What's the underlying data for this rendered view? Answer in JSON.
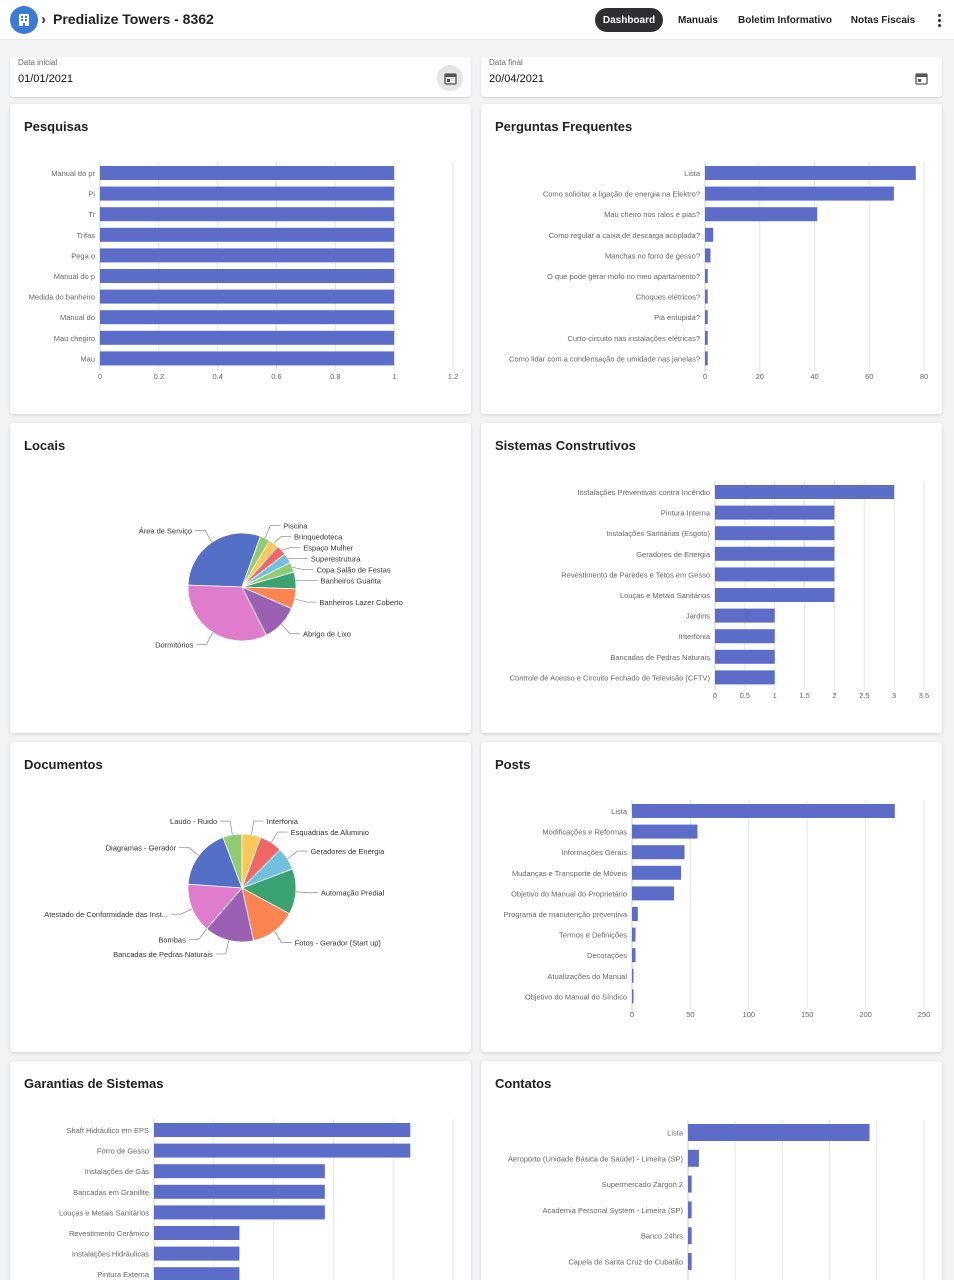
{
  "header": {
    "title": "Predialize Towers - 8362",
    "nav": [
      {
        "label": "Dashboard",
        "active": true
      },
      {
        "label": "Manuais",
        "active": false
      },
      {
        "label": "Boletim Informativo",
        "active": false
      },
      {
        "label": "Notas Fiscais",
        "active": false
      }
    ]
  },
  "filters": {
    "start": {
      "label": "Data inicial",
      "value": "01/01/2021"
    },
    "end": {
      "label": "Data final",
      "value": "20/04/2021"
    }
  },
  "colors": {
    "bar": "#5b6dc8",
    "grid": "#e6e6e6"
  },
  "cards": [
    {
      "title": "Pesquisas"
    },
    {
      "title": "Perguntas Frequentes"
    },
    {
      "title": "Locais"
    },
    {
      "title": "Sistemas Construtivos"
    },
    {
      "title": "Documentos"
    },
    {
      "title": "Posts"
    },
    {
      "title": "Garantias de Sistemas"
    },
    {
      "title": "Contatos"
    }
  ],
  "chart_data": [
    {
      "type": "bar",
      "orientation": "horizontal",
      "categories": [
        "Manual do pr",
        "Pi",
        "Tr",
        "Trifas",
        "Pega o",
        "Manual do p",
        "Medida do banheiro",
        "Manual do",
        "Mau chegiro",
        "Mau"
      ],
      "values": [
        1,
        1,
        1,
        1,
        1,
        1,
        1,
        1,
        1,
        1
      ],
      "ticks": [
        "0",
        "0.2",
        "0.4",
        "0.6",
        "0.8",
        "1",
        "1.2"
      ],
      "xlim": [
        0,
        1.2
      ]
    },
    {
      "type": "bar",
      "orientation": "horizontal",
      "categories": [
        "Lista",
        "Como solicitar a ligação de energia na Elektro?",
        "Mau cheiro nos ralos e pias?",
        "Como regular a caixa de descarga acoplada?",
        "Manchas no forro de gesso?",
        "O que pode gerar mofo no meu apartamento?",
        "Choques elétricos?",
        "Pia entupida?",
        "Curto-circuito nas instalações elétricas?",
        "Como lidar com a condensação de umidade nas janelas?"
      ],
      "values": [
        77,
        69,
        41,
        3,
        2,
        1,
        1,
        1,
        1,
        1
      ],
      "ticks": [
        "0",
        "20",
        "40",
        "60",
        "80"
      ],
      "xlim": [
        0,
        80
      ]
    },
    {
      "type": "pie",
      "slices": [
        {
          "label": "Área de Serviço",
          "value": 30,
          "color": "#5470c6"
        },
        {
          "label": "Piscina",
          "value": 3,
          "color": "#91cc75"
        },
        {
          "label": "Brinquedoteca",
          "value": 3,
          "color": "#fac858"
        },
        {
          "label": "Espaço Mulher",
          "value": 3,
          "color": "#ee6666"
        },
        {
          "label": "Superestrutura",
          "value": 3,
          "color": "#73c0de"
        },
        {
          "label": "Copa Salão de Festas",
          "value": 3,
          "color": "#91cc75"
        },
        {
          "label": "Banheiros Guarita",
          "value": 5,
          "color": "#3ba272"
        },
        {
          "label": "Banheiros Lazer Coberto",
          "value": 6,
          "color": "#fc8452"
        },
        {
          "label": "Abrigo de Lixo",
          "value": 11,
          "color": "#9a60b4"
        },
        {
          "label": "Dormitórios",
          "value": 33,
          "color": "#e07ccc"
        }
      ]
    },
    {
      "type": "bar",
      "orientation": "horizontal",
      "categories": [
        "Instalações Preventivas contra Incêndio",
        "Pintura Interna",
        "Instalações Sanitárias (Esgoto)",
        "Geradores de Energia",
        "Revestimento de Paredes e Tetos em Gesso",
        "Louças e Metais Sanitários",
        "Jardins",
        "Interfonia",
        "Bancadas de Pedras Naturais",
        "Controle de Acesso e Circuito Fechado de Televisão (CFTV)"
      ],
      "values": [
        3,
        2,
        2,
        2,
        2,
        2,
        1,
        1,
        1,
        1
      ],
      "ticks": [
        "0",
        "0.5",
        "1",
        "1.5",
        "2",
        "2.5",
        "3",
        "3.5"
      ],
      "xlim": [
        0,
        3.5
      ]
    },
    {
      "type": "pie",
      "slices": [
        {
          "label": "Diagramas - Gerador",
          "value": 16,
          "color": "#5470c6"
        },
        {
          "label": "Laudo - Ruido",
          "value": 5,
          "color": "#91cc75"
        },
        {
          "label": "Interfonia",
          "value": 5,
          "color": "#fac858"
        },
        {
          "label": "Esquadrias de Aluminio",
          "value": 6,
          "color": "#ee6666"
        },
        {
          "label": "Geradores de Energia",
          "value": 6,
          "color": "#73c0de"
        },
        {
          "label": "Automação Predial",
          "value": 12,
          "color": "#3ba272"
        },
        {
          "label": "Fotos - Gerador (Start up)",
          "value": 12,
          "color": "#fc8452"
        },
        {
          "label": "Bancadas de Pedras Naturais",
          "value": 13,
          "color": "#9a60b4"
        },
        {
          "label": "Bombas",
          "value": 0,
          "color": "#9a60b4"
        },
        {
          "label": "Atestado de Conformidade das Inst...",
          "value": 13,
          "color": "#e07ccc"
        }
      ]
    },
    {
      "type": "bar",
      "orientation": "horizontal",
      "categories": [
        "Lista",
        "Modificações e Reformas",
        "Informações Gerais",
        "Mudanças e Transporte de Móveis",
        "Objetivo do Manual do Proprietário",
        "Programa de manutenção preventiva",
        "Termos e Definições",
        "Decorações",
        "Atualizações do Manual",
        "Objetivo do Manual do Síndico"
      ],
      "values": [
        225,
        56,
        45,
        42,
        36,
        5,
        3,
        3,
        1,
        1
      ],
      "ticks": [
        "0",
        "50",
        "100",
        "150",
        "200",
        "250"
      ],
      "xlim": [
        0,
        250
      ]
    },
    {
      "type": "bar",
      "orientation": "horizontal",
      "categories": [
        "Shaft Hidráulico em EPS",
        "Forro de Gesso",
        "Instalações de Gás",
        "Bancadas em Granilite",
        "Louças e Metais Sanitários",
        "Revestimento Cerâmico",
        "Instalações Hidráulicas",
        "Pintura Externa"
      ],
      "values": [
        6,
        6,
        4,
        4,
        4,
        2,
        2,
        2
      ],
      "ticks": [],
      "xlim": [
        0,
        7
      ]
    },
    {
      "type": "bar",
      "orientation": "horizontal",
      "categories": [
        "Lista",
        "Aeroporto (Unidade Básica de Saúde) - Limeira (SP)",
        "Supermercado Zargon 2",
        "Academia Personal System - Limeira (SP)",
        "Banco 24hrs",
        "Capela de Santa Cruz do Cubatão"
      ],
      "values": [
        50,
        3,
        1,
        1,
        1,
        1
      ],
      "ticks": [],
      "xlim": [
        0,
        65
      ]
    }
  ]
}
